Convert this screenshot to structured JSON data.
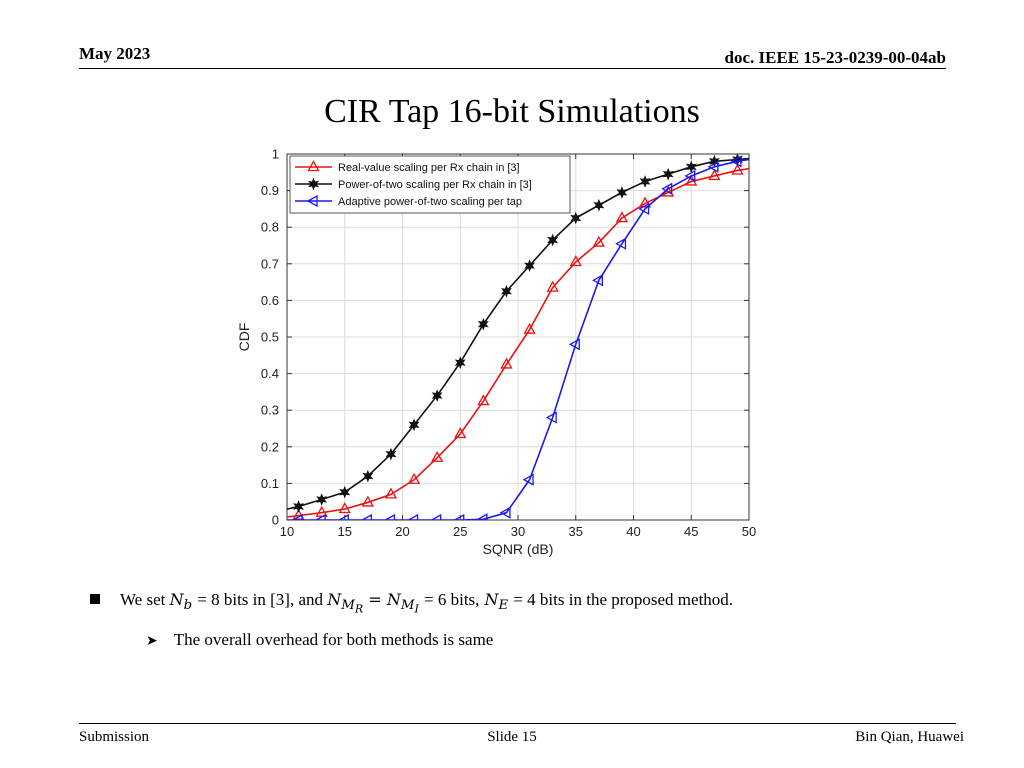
{
  "header": {
    "date": "May 2023",
    "doc": "doc. IEEE 15-23-0239-00-04ab"
  },
  "title": "CIR Tap 16-bit Simulations",
  "bullets": {
    "b1": {
      "t1": "We set ",
      "t2": "= 8 bits in [3], and ",
      "t3": "= 6 bits,",
      "t4": "= 4 bits in the proposed method."
    },
    "b2": "The overall overhead for both methods is same"
  },
  "footer": {
    "left": "Submission",
    "center": "Slide 15",
    "right": "Bin Qian, Huawei"
  },
  "chart_data": {
    "type": "line",
    "xlabel": "SQNR (dB)",
    "ylabel": "CDF",
    "xlim": [
      10,
      50
    ],
    "ylim": [
      0,
      1
    ],
    "xticks": [
      10,
      15,
      20,
      25,
      30,
      35,
      40,
      45,
      50
    ],
    "yticks": [
      0,
      0.1,
      0.2,
      0.3,
      0.4,
      0.5,
      0.6,
      0.7,
      0.8,
      0.9,
      1
    ],
    "grid": true,
    "legend_position": "top-left",
    "x": [
      9,
      11,
      13,
      15,
      17,
      19,
      21,
      23,
      25,
      27,
      29,
      31,
      33,
      35,
      37,
      39,
      41,
      43,
      45,
      47,
      49,
      51
    ],
    "series": [
      {
        "name": "Real-value scaling per Rx chain in [3]",
        "color": "#ee1111",
        "marker": "triangle-up",
        "values": [
          0.005,
          0.012,
          0.02,
          0.03,
          0.048,
          0.07,
          0.11,
          0.17,
          0.235,
          0.325,
          0.425,
          0.52,
          0.635,
          0.705,
          0.758,
          0.825,
          0.865,
          0.895,
          0.925,
          0.94,
          0.955,
          0.965
        ]
      },
      {
        "name": "Power-of-two scaling per Rx chain in [3]",
        "color": "#111111",
        "marker": "hexagram",
        "values": [
          0.022,
          0.037,
          0.056,
          0.076,
          0.12,
          0.18,
          0.26,
          0.34,
          0.43,
          0.535,
          0.625,
          0.695,
          0.765,
          0.825,
          0.86,
          0.895,
          0.925,
          0.945,
          0.965,
          0.98,
          0.985,
          0.99
        ]
      },
      {
        "name": "Adaptive power-of-two scaling per tap",
        "color": "#1a1aee",
        "marker": "triangle-left",
        "values": [
          0.0,
          0.0,
          0.0,
          0.0,
          0.0,
          0.0,
          0.0,
          0.0,
          0.0,
          0.002,
          0.02,
          0.11,
          0.28,
          0.48,
          0.655,
          0.755,
          0.85,
          0.905,
          0.94,
          0.965,
          0.98,
          0.99
        ]
      }
    ]
  }
}
